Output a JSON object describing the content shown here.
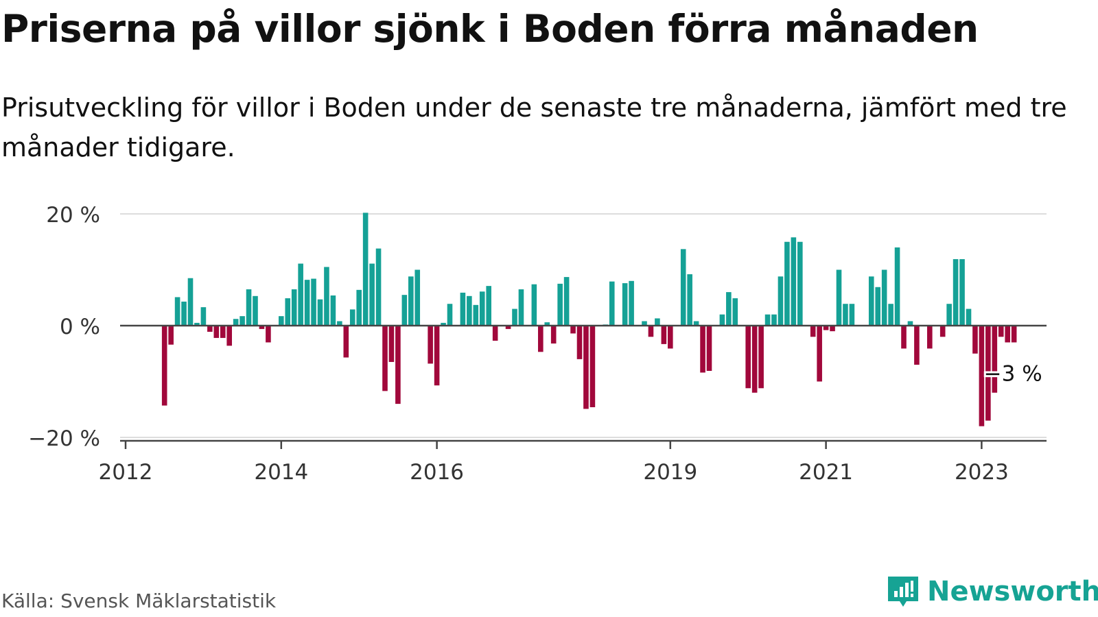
{
  "title": "Priserna på villor sjönk i Boden förra månaden",
  "subtitle": "Prisutveckling för villor i Boden under de senaste tre månaderna, jämfört med tre månader tidigare.",
  "source": "Källa: Svensk Mäklarstatistik",
  "brand": "Newsworthy",
  "colors": {
    "positive": "#15a196",
    "negative": "#a1083b",
    "grid": "#dddddd",
    "zero_line": "#444444",
    "brand": "#16a394"
  },
  "chart_data": {
    "type": "bar",
    "ylim": [
      -20,
      20
    ],
    "yticks": [
      "20 %",
      "0 %",
      "−20 %"
    ],
    "ytick_values": [
      20,
      0,
      -20
    ],
    "xticks": [
      "2012",
      "2014",
      "2016",
      "2019",
      "2021",
      "2023"
    ],
    "xtick_months": [
      "2012-01",
      "2014-01",
      "2016-01",
      "2019-01",
      "2021-01",
      "2023-01"
    ],
    "x_start": "2012-01",
    "x_end": "2023-12",
    "last_value_label": "−3 %",
    "grid": true,
    "months": [
      "2012-07",
      "2012-08",
      "2012-09",
      "2012-10",
      "2012-11",
      "2012-12",
      "2013-01",
      "2013-02",
      "2013-03",
      "2013-04",
      "2013-05",
      "2013-06",
      "2013-07",
      "2013-08",
      "2013-09",
      "2013-10",
      "2013-11",
      "2013-12",
      "2014-01",
      "2014-02",
      "2014-03",
      "2014-04",
      "2014-05",
      "2014-06",
      "2014-07",
      "2014-08",
      "2014-09",
      "2014-10",
      "2014-11",
      "2014-12",
      "2015-01",
      "2015-02",
      "2015-03",
      "2015-04",
      "2015-05",
      "2015-06",
      "2015-07",
      "2015-08",
      "2015-09",
      "2015-10",
      "2015-11",
      "2015-12",
      "2016-01",
      "2016-02",
      "2016-03",
      "2016-04",
      "2016-05",
      "2016-06",
      "2016-07",
      "2016-08",
      "2016-09",
      "2016-10",
      "2016-11",
      "2016-12",
      "2017-01",
      "2017-02",
      "2017-03",
      "2017-04",
      "2017-05",
      "2017-06",
      "2017-07",
      "2017-08",
      "2017-09",
      "2017-10",
      "2017-11",
      "2017-12",
      "2018-01",
      "2018-02",
      "2018-03",
      "2018-04",
      "2018-05",
      "2018-06",
      "2018-07",
      "2018-08",
      "2018-09",
      "2018-10",
      "2018-11",
      "2018-12",
      "2019-01",
      "2019-02",
      "2019-03",
      "2019-04",
      "2019-05",
      "2019-06",
      "2019-07",
      "2019-08",
      "2019-09",
      "2019-10",
      "2019-11",
      "2019-12",
      "2020-01",
      "2020-02",
      "2020-03",
      "2020-04",
      "2020-05",
      "2020-06",
      "2020-07",
      "2020-08",
      "2020-09",
      "2020-10",
      "2020-11",
      "2020-12",
      "2021-01",
      "2021-02",
      "2021-03",
      "2021-04",
      "2021-05",
      "2021-06",
      "2021-07",
      "2021-08",
      "2021-09",
      "2021-10",
      "2021-11",
      "2021-12",
      "2022-01",
      "2022-02",
      "2022-03",
      "2022-04",
      "2022-05",
      "2022-06",
      "2022-07",
      "2022-08",
      "2022-09",
      "2022-10",
      "2022-11",
      "2022-12",
      "2023-01",
      "2023-02",
      "2023-03",
      "2023-04",
      "2023-05",
      "2023-06"
    ],
    "values": [
      -14.3,
      -3.4,
      5.1,
      4.3,
      8.5,
      0.5,
      3.3,
      -1.1,
      -2.2,
      -2.2,
      -3.6,
      1.2,
      1.7,
      6.5,
      5.3,
      -0.6,
      -3.0,
      0.0,
      1.7,
      4.9,
      6.5,
      11.1,
      8.2,
      8.4,
      4.7,
      10.5,
      5.4,
      0.8,
      -5.7,
      2.9,
      6.4,
      20.2,
      11.1,
      13.8,
      -11.7,
      -6.5,
      -14.0,
      5.5,
      8.8,
      10.0,
      0.0,
      -6.8,
      -10.7,
      0.5,
      3.9,
      0.0,
      5.9,
      5.3,
      3.7,
      6.1,
      7.1,
      -2.7,
      0.0,
      -0.6,
      3.0,
      6.5,
      0.0,
      7.4,
      -4.7,
      0.6,
      -3.2,
      7.5,
      8.7,
      -1.4,
      -6.0,
      -14.9,
      -14.6,
      0.0,
      0.2,
      7.9,
      0.0,
      7.6,
      8.0,
      0.0,
      0.8,
      -2.0,
      1.3,
      -3.3,
      -4.1,
      0.0,
      13.7,
      9.2,
      0.8,
      -8.4,
      -8.1,
      0.0,
      2.0,
      6.0,
      4.9,
      0.0,
      -11.2,
      -12.0,
      -11.2,
      2.0,
      2.0,
      8.8,
      15.0,
      15.8,
      15.0,
      0.0,
      -2.0,
      -10.0,
      -0.8,
      -1.0,
      10.0,
      3.9,
      3.9,
      0.0,
      0.0,
      8.8,
      6.9,
      10.0,
      3.9,
      14.0,
      -4.1,
      0.8,
      -7.0,
      0.0,
      -4.1,
      0.0,
      -2.0,
      3.9,
      11.9,
      11.9,
      3.0,
      -5.0,
      -18.0,
      -17.0,
      -12.0,
      -2.0,
      -3.0,
      -3.0
    ]
  }
}
